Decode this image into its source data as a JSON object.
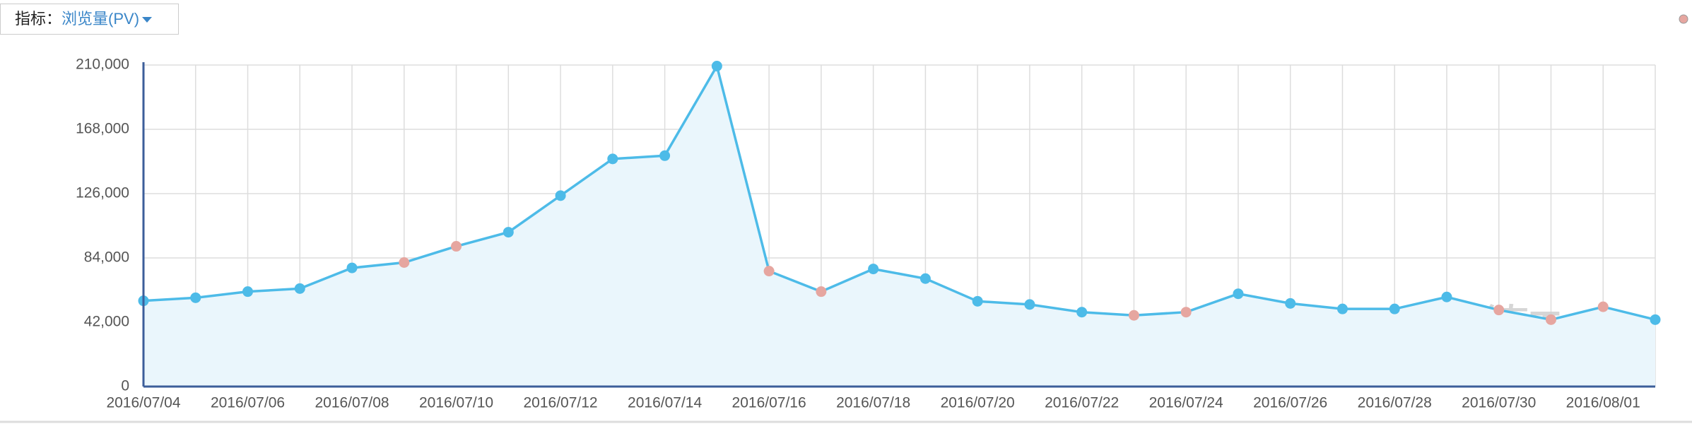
{
  "metric_label": "指标：",
  "metric_value": "浏览量(PV)",
  "watermark": "张德Talk",
  "chart_data": {
    "type": "area-line",
    "categories": [
      "2016/07/04",
      null,
      "2016/07/06",
      null,
      "2016/07/08",
      null,
      "2016/07/10",
      null,
      "2016/07/12",
      null,
      "2016/07/14",
      null,
      "2016/07/16",
      null,
      "2016/07/18",
      null,
      "2016/07/20",
      null,
      "2016/07/22",
      null,
      "2016/07/24",
      null,
      "2016/07/26",
      null,
      "2016/07/28",
      null,
      "2016/07/30",
      null,
      "2016/08/01",
      null
    ],
    "values": [
      56000,
      58000,
      62000,
      64000,
      77500,
      81000,
      91600,
      100800,
      124700,
      148700,
      150800,
      209300,
      75400,
      62000,
      76800,
      70500,
      55700,
      53600,
      48600,
      46500,
      48600,
      60600,
      54300,
      50700,
      50700,
      58500,
      50000,
      43700,
      52100,
      43700
    ],
    "color": "#4dbbe8",
    "fill": "#eaf6fc",
    "point_colors": [
      "#4dbbe8",
      "#4dbbe8",
      "#4dbbe8",
      "#4dbbe8",
      "#4dbbe8",
      "#e6a6a0",
      "#e6a6a0",
      "#4dbbe8",
      "#4dbbe8",
      "#4dbbe8",
      "#4dbbe8",
      "#4dbbe8",
      "#e6a6a0",
      "#e6a6a0",
      "#4dbbe8",
      "#4dbbe8",
      "#4dbbe8",
      "#4dbbe8",
      "#4dbbe8",
      "#e6a6a0",
      "#e6a6a0",
      "#4dbbe8",
      "#4dbbe8",
      "#4dbbe8",
      "#4dbbe8",
      "#4dbbe8",
      "#e6a6a0",
      "#e6a6a0",
      "#e6a6a0",
      "#4dbbe8"
    ],
    "ylim": [
      0,
      210000
    ],
    "yticks": [
      0,
      {
        "value": 42000,
        "label": "42,000"
      },
      {
        "value": 84000,
        "label": "84,000"
      },
      {
        "value": 126000,
        "label": "126,000"
      },
      {
        "value": 168000,
        "label": "168,000"
      },
      {
        "value": 210000,
        "label": "210,000"
      }
    ],
    "grid": true
  }
}
